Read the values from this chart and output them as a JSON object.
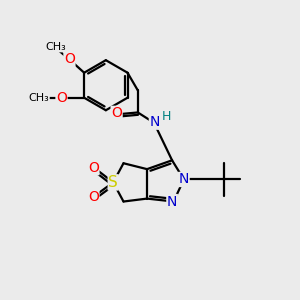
{
  "bg_color": "#ebebeb",
  "bond_color": "#000000",
  "bond_width": 1.6,
  "atom_colors": {
    "O": "#ff0000",
    "N": "#0000cd",
    "S": "#cccc00",
    "C": "#000000",
    "H": "#008080"
  },
  "figsize": [
    3.0,
    3.0
  ],
  "dpi": 100,
  "xlim": [
    0,
    10
  ],
  "ylim": [
    0,
    10
  ]
}
